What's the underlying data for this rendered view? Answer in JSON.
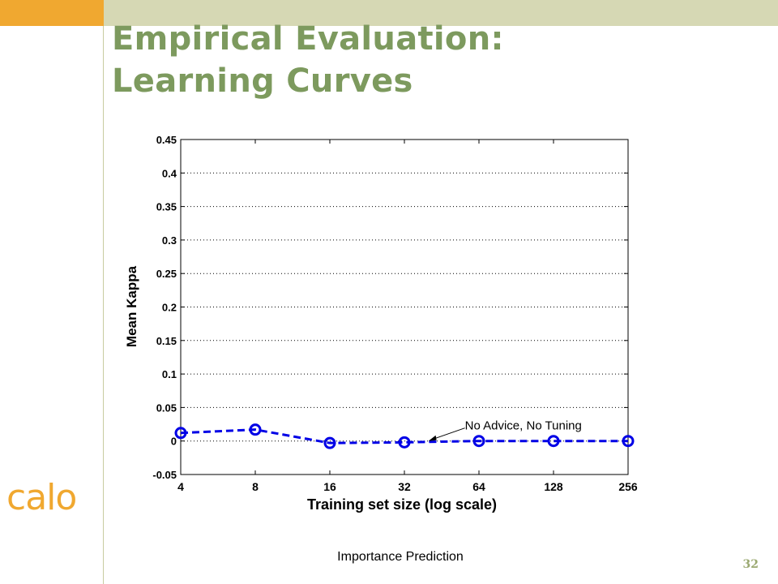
{
  "slide": {
    "title_line1": "Empirical Evaluation:",
    "title_line2": "Learning Curves",
    "logo": "calo",
    "caption": "Importance Prediction",
    "page_number": "32"
  },
  "colors": {
    "top_bar": "#d6d8b4",
    "corner": "#f0a830",
    "title": "#7d9a5e",
    "series": "#0000e6"
  },
  "chart_data": {
    "type": "line",
    "xlabel": "Training set size (log scale)",
    "ylabel": "Mean Kappa",
    "x_scale": "log2",
    "x_ticks": [
      4,
      8,
      16,
      32,
      64,
      128,
      256
    ],
    "x_tick_labels": [
      "4",
      "8",
      "16",
      "32",
      "64",
      "128",
      "256"
    ],
    "xlim": [
      4,
      256
    ],
    "ylim": [
      -0.05,
      0.45
    ],
    "y_ticks": [
      -0.05,
      0,
      0.05,
      0.1,
      0.15,
      0.2,
      0.25,
      0.3,
      0.35,
      0.4,
      0.45
    ],
    "y_tick_labels": [
      "-0.05",
      "0",
      "0.05",
      "0.1",
      "0.15",
      "0.2",
      "0.25",
      "0.3",
      "0.35",
      "0.4",
      "0.45"
    ],
    "grid": "dotted horizontal",
    "series": [
      {
        "name": "No Advice, No Tuning",
        "x": [
          4,
          8,
          16,
          32,
          64,
          128,
          256
        ],
        "y": [
          0.012,
          0.017,
          -0.003,
          -0.002,
          0.0,
          0.0,
          0.0
        ],
        "style": "dashed",
        "marker": "circle"
      }
    ],
    "annotations": [
      {
        "text": "No Advice, No Tuning",
        "arrow_to_x": 40,
        "arrow_to_y": 0.0
      }
    ]
  }
}
